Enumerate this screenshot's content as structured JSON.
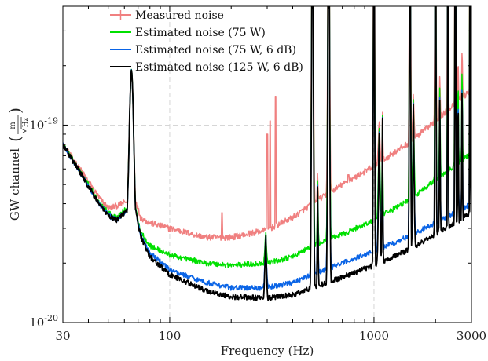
{
  "chart_data": {
    "type": "line",
    "title": "",
    "xlabel": "Frequency (Hz)",
    "ylabel": "GW channel",
    "ylabel_unit": {
      "numerator": "m",
      "denominator": "Hz"
    },
    "x_scale": "log",
    "y_scale": "log",
    "xlim": [
      30,
      3000
    ],
    "ylim": [
      1e-20,
      4e-19
    ],
    "x_ticks": [
      {
        "value": 30,
        "label": "30"
      },
      {
        "value": 100,
        "label": "100"
      },
      {
        "value": 1000,
        "label": "1000"
      },
      {
        "value": 3000,
        "label": "3000"
      }
    ],
    "y_ticks": [
      {
        "value": 1e-20,
        "base": "10",
        "exp": "-20"
      },
      {
        "value": 1e-19,
        "base": "10",
        "exp": "-19"
      }
    ],
    "grid": "dashed at major decades",
    "legend_position": "top-left",
    "series": [
      {
        "name": "Measured noise",
        "color": "#f08080",
        "points": [
          [
            30,
            8e-20
          ],
          [
            40,
            5.2e-20
          ],
          [
            45,
            4.3e-20
          ],
          [
            50,
            3.8e-20
          ],
          [
            55,
            3.9e-20
          ],
          [
            58,
            4e-20
          ],
          [
            62,
            4.1e-20
          ],
          [
            65,
            1.9e-19
          ],
          [
            68,
            4.2e-20
          ],
          [
            72,
            3.4e-20
          ],
          [
            80,
            3.2e-20
          ],
          [
            100,
            3e-20
          ],
          [
            150,
            2.7e-20
          ],
          [
            200,
            2.7e-20
          ],
          [
            300,
            2.95e-20
          ],
          [
            400,
            3.4e-20
          ],
          [
            500,
            4e-20
          ],
          [
            700,
            5e-20
          ],
          [
            1000,
            6.2e-20
          ],
          [
            1500,
            8.2e-20
          ],
          [
            2000,
            1.05e-19
          ],
          [
            2500,
            1.3e-19
          ],
          [
            3000,
            1.5e-19
          ]
        ]
      },
      {
        "name": "Estimated noise (75 W)",
        "color": "#00e000",
        "points": [
          [
            30,
            8e-20
          ],
          [
            40,
            5e-20
          ],
          [
            45,
            4.1e-20
          ],
          [
            50,
            3.6e-20
          ],
          [
            55,
            3.4e-20
          ],
          [
            58,
            3.6e-20
          ],
          [
            62,
            3.8e-20
          ],
          [
            65,
            1.9e-19
          ],
          [
            68,
            3.8e-20
          ],
          [
            72,
            2.9e-20
          ],
          [
            80,
            2.45e-20
          ],
          [
            100,
            2.2e-20
          ],
          [
            150,
            2e-20
          ],
          [
            200,
            1.95e-20
          ],
          [
            300,
            2e-20
          ],
          [
            400,
            2.15e-20
          ],
          [
            500,
            2.45e-20
          ],
          [
            700,
            2.8e-20
          ],
          [
            1000,
            3.3e-20
          ],
          [
            1500,
            4.2e-20
          ],
          [
            2000,
            5.3e-20
          ],
          [
            2500,
            6.3e-20
          ],
          [
            3000,
            7.2e-20
          ]
        ]
      },
      {
        "name": "Estimated noise (75 W, 6 dB)",
        "color": "#0a64e6",
        "points": [
          [
            30,
            8e-20
          ],
          [
            40,
            4.9e-20
          ],
          [
            45,
            4e-20
          ],
          [
            50,
            3.5e-20
          ],
          [
            55,
            3.3e-20
          ],
          [
            58,
            3.5e-20
          ],
          [
            62,
            3.7e-20
          ],
          [
            65,
            1.9e-19
          ],
          [
            68,
            3.7e-20
          ],
          [
            72,
            2.8e-20
          ],
          [
            80,
            2.25e-20
          ],
          [
            100,
            1.85e-20
          ],
          [
            150,
            1.6e-20
          ],
          [
            200,
            1.5e-20
          ],
          [
            300,
            1.5e-20
          ],
          [
            400,
            1.6e-20
          ],
          [
            500,
            1.75e-20
          ],
          [
            700,
            2e-20
          ],
          [
            1000,
            2.3e-20
          ],
          [
            1500,
            2.75e-20
          ],
          [
            2000,
            3.2e-20
          ],
          [
            2500,
            3.6e-20
          ],
          [
            3000,
            4e-20
          ]
        ]
      },
      {
        "name": "Estimated noise (125 W, 6 dB)",
        "color": "#000000",
        "points": [
          [
            30,
            8e-20
          ],
          [
            40,
            4.9e-20
          ],
          [
            45,
            4e-20
          ],
          [
            50,
            3.5e-20
          ],
          [
            55,
            3.3e-20
          ],
          [
            58,
            3.5e-20
          ],
          [
            62,
            3.7e-20
          ],
          [
            65,
            1.9e-19
          ],
          [
            68,
            3.7e-20
          ],
          [
            72,
            2.75e-20
          ],
          [
            80,
            2.15e-20
          ],
          [
            100,
            1.75e-20
          ],
          [
            150,
            1.45e-20
          ],
          [
            200,
            1.35e-20
          ],
          [
            300,
            1.33e-20
          ],
          [
            400,
            1.38e-20
          ],
          [
            500,
            1.5e-20
          ],
          [
            700,
            1.7e-20
          ],
          [
            1000,
            1.95e-20
          ],
          [
            1500,
            2.35e-20
          ],
          [
            2000,
            2.8e-20
          ],
          [
            2500,
            3.2e-20
          ],
          [
            3000,
            3.6e-20
          ]
        ]
      }
    ],
    "peaks": [
      {
        "f": 65,
        "y": 1.9e-19,
        "width": 0.018
      },
      {
        "f": 295,
        "y": 3e-20,
        "width": 0.012
      },
      {
        "f": 500,
        "y": 1e-17,
        "width": 0.012
      },
      {
        "f": 530,
        "y": 6e-20,
        "width": 0.006
      },
      {
        "f": 600,
        "y": 1e-17,
        "width": 0.012
      },
      {
        "f": 1000,
        "y": 1e-17,
        "width": 0.008
      },
      {
        "f": 1060,
        "y": 1.1e-19,
        "width": 0.012
      },
      {
        "f": 1100,
        "y": 1.2e-19,
        "width": 0.006
      },
      {
        "f": 1500,
        "y": 1e-17,
        "width": 0.008
      },
      {
        "f": 1560,
        "y": 1.5e-19,
        "width": 0.01
      },
      {
        "f": 2000,
        "y": 1e-17,
        "width": 0.007
      },
      {
        "f": 2100,
        "y": 2e-19,
        "width": 0.006
      },
      {
        "f": 2300,
        "y": 1e-17,
        "width": 0.005
      },
      {
        "f": 2500,
        "y": 1e-17,
        "width": 0.006
      },
      {
        "f": 2580,
        "y": 2.5e-19,
        "width": 0.005
      },
      {
        "f": 2700,
        "y": 3e-19,
        "width": 0.005
      },
      {
        "f": 2950,
        "y": 1e-17,
        "width": 0.004
      }
    ],
    "measured_only_spikes": [
      {
        "f": 180,
        "y": 3.6e-20
      },
      {
        "f": 300,
        "y": 9e-20
      },
      {
        "f": 310,
        "y": 1.05e-19
      },
      {
        "f": 330,
        "y": 1.4e-19
      },
      {
        "f": 750,
        "y": 5.6e-20
      }
    ]
  }
}
